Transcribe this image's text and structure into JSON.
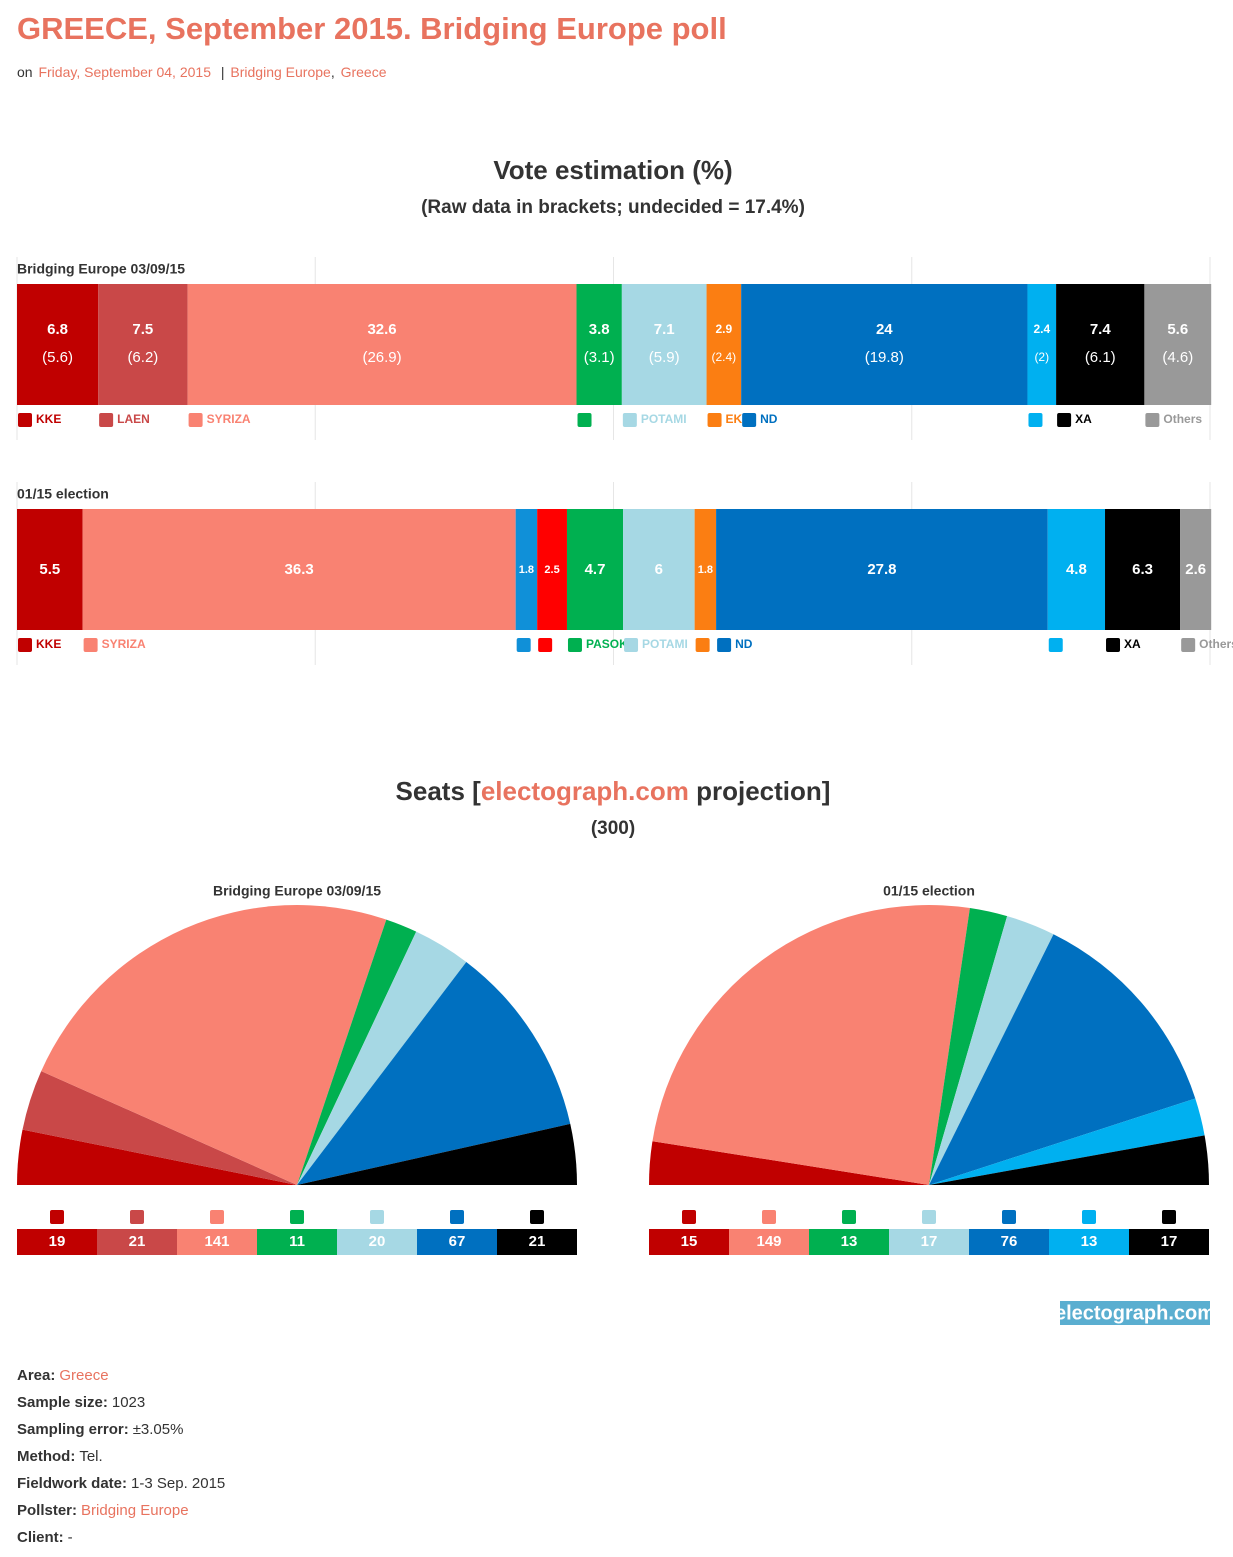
{
  "header": {
    "title": "GREECE, September 2015. Bridging Europe poll",
    "prefix": "on",
    "date": "Friday, September 04, 2015",
    "separator": "|",
    "tags": [
      "Bridging Europe",
      "Greece"
    ],
    "tag_separator": ","
  },
  "sections": {
    "votes": {
      "title": "Vote estimation (%)",
      "subtitle": "(Raw data in brackets; undecided = 17.4%)"
    },
    "seats": {
      "title_parts": [
        "Seats [",
        "electograph.com",
        " projection]"
      ],
      "subtitle": "(300)"
    }
  },
  "chart_data": [
    {
      "type": "bar",
      "orientation": "horizontal",
      "stacked": true,
      "title": "Bridging Europe 03/09/15",
      "xlim": [
        0,
        100
      ],
      "xticks": [
        0,
        25,
        50,
        75,
        100
      ],
      "grid": true,
      "series": [
        {
          "name": "KKE",
          "color": "#c00000",
          "values": [
            6.8
          ],
          "raw_labels": [
            "(5.6)"
          ]
        },
        {
          "name": "LAEN",
          "color": "#c94848",
          "values": [
            7.5
          ],
          "raw_labels": [
            "(6.2)"
          ]
        },
        {
          "name": "SYRIZA",
          "color": "#f98272",
          "values": [
            32.6
          ],
          "raw_labels": [
            "(26.9)"
          ]
        },
        {
          "name": null,
          "color": "#00b050",
          "values": [
            3.8
          ],
          "raw_labels": [
            "(3.1)"
          ]
        },
        {
          "name": "POTAMI",
          "color": "#a6d8e4",
          "values": [
            7.1
          ],
          "raw_labels": [
            "(5.9)"
          ]
        },
        {
          "name": "EK",
          "color": "#fb7e12",
          "values": [
            2.9
          ],
          "raw_labels": [
            "(2.4)"
          ]
        },
        {
          "name": "ND",
          "color": "#0070c0",
          "values": [
            24
          ],
          "raw_labels": [
            "(19.8)"
          ]
        },
        {
          "name": null,
          "color": "#00b0f0",
          "values": [
            2.4
          ],
          "raw_labels": [
            "(2)"
          ]
        },
        {
          "name": "XA",
          "color": "#000000",
          "values": [
            7.4
          ],
          "raw_labels": [
            "(6.1)"
          ]
        },
        {
          "name": "Others",
          "color": "#999999",
          "values": [
            5.6
          ],
          "raw_labels": [
            "(4.6)"
          ]
        }
      ]
    },
    {
      "type": "bar",
      "orientation": "horizontal",
      "stacked": true,
      "title": "01/15 election",
      "xlim": [
        0,
        100
      ],
      "xticks": [
        0,
        25,
        50,
        75,
        100
      ],
      "grid": true,
      "series": [
        {
          "name": "KKE",
          "color": "#c00000",
          "values": [
            5.5
          ]
        },
        {
          "name": "SYRIZA",
          "color": "#f98272",
          "values": [
            36.3
          ]
        },
        {
          "name": null,
          "color": "#1090d8",
          "values": [
            1.8
          ]
        },
        {
          "name": null,
          "color": "#ff0000",
          "values": [
            2.5
          ]
        },
        {
          "name": "PASOK",
          "color": "#00b050",
          "values": [
            4.7
          ]
        },
        {
          "name": "POTAMI",
          "color": "#a6d8e4",
          "values": [
            6
          ]
        },
        {
          "name": null,
          "color": "#fb7e12",
          "values": [
            1.8
          ]
        },
        {
          "name": "ND",
          "color": "#0070c0",
          "values": [
            27.8
          ]
        },
        {
          "name": null,
          "color": "#00b0f0",
          "values": [
            4.8
          ]
        },
        {
          "name": "XA",
          "color": "#000000",
          "values": [
            6.3
          ]
        },
        {
          "name": "Others",
          "color": "#999999",
          "values": [
            2.6
          ]
        }
      ]
    },
    {
      "type": "hemicycle",
      "title": "Bridging Europe 03/09/15",
      "values": [
        19,
        21,
        141,
        11,
        20,
        67,
        21
      ],
      "colors": [
        "#c00000",
        "#c94848",
        "#f98272",
        "#00b050",
        "#a6d8e4",
        "#0070c0",
        "#000000"
      ]
    },
    {
      "type": "hemicycle",
      "title": "01/15 election",
      "values": [
        15,
        149,
        13,
        17,
        76,
        13,
        17
      ],
      "colors": [
        "#c00000",
        "#f98272",
        "#00b050",
        "#a6d8e4",
        "#0070c0",
        "#00b0f0",
        "#000000"
      ]
    }
  ],
  "badge": "electograph.com",
  "details": [
    {
      "label": "Area:",
      "value": "Greece",
      "link": true
    },
    {
      "label": "Sample size:",
      "value": "1023",
      "link": false
    },
    {
      "label": "Sampling error:",
      "value": "±3.05%",
      "link": false
    },
    {
      "label": "Method:",
      "value": "Tel.",
      "link": false
    },
    {
      "label": "Fieldwork date:",
      "value": "1-3 Sep. 2015",
      "link": false
    },
    {
      "label": "Pollster:",
      "value": "Bridging Europe",
      "link": true
    },
    {
      "label": "Client:",
      "value": "-",
      "link": false
    }
  ]
}
